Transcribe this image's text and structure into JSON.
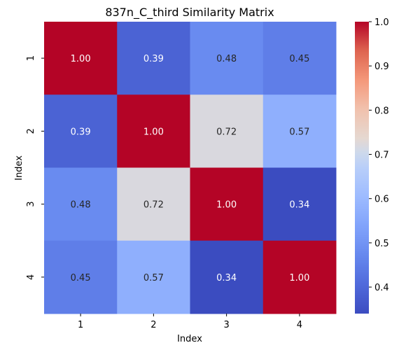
{
  "chart_data": {
    "type": "heatmap",
    "title": "837n_C_third Similarity Matrix",
    "xlabel": "Index",
    "ylabel": "Index",
    "x_categories": [
      "1",
      "2",
      "3",
      "4"
    ],
    "y_categories": [
      "1",
      "2",
      "3",
      "4"
    ],
    "values": [
      [
        1.0,
        0.39,
        0.48,
        0.45
      ],
      [
        0.39,
        1.0,
        0.72,
        0.57
      ],
      [
        0.48,
        0.72,
        1.0,
        0.34
      ],
      [
        0.45,
        0.57,
        0.34,
        1.0
      ]
    ],
    "annotations": [
      [
        "1.00",
        "0.39",
        "0.48",
        "0.45"
      ],
      [
        "0.39",
        "1.00",
        "0.72",
        "0.57"
      ],
      [
        "0.48",
        "0.72",
        "1.00",
        "0.34"
      ],
      [
        "0.45",
        "0.57",
        "0.34",
        "1.00"
      ]
    ],
    "colormap": "coolwarm",
    "vmin": 0.34,
    "vmax": 1.0,
    "colorbar_ticks": [
      0.4,
      0.5,
      0.6,
      0.7,
      0.8,
      0.9,
      1.0
    ],
    "colorbar_tick_labels": [
      "0.4",
      "0.5",
      "0.6",
      "0.7",
      "0.8",
      "0.9",
      "1.0"
    ],
    "grid": false,
    "legend": "colorbar-right"
  }
}
